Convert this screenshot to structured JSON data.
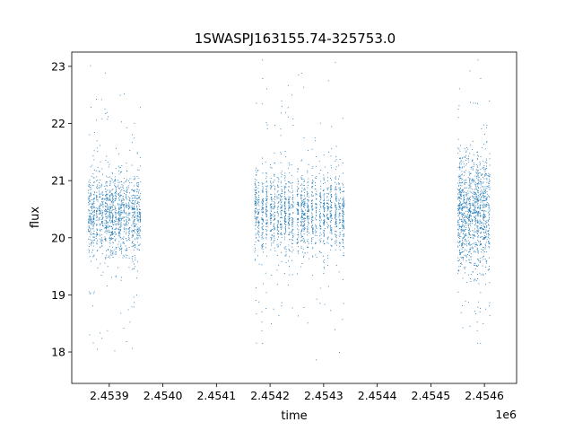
{
  "chart_data": {
    "type": "scatter",
    "title": "1SWASPJ163155.74-325753.0",
    "xlabel": "time",
    "ylabel": "flux",
    "x_offset_text": "1e6",
    "xlim": [
      2.45383,
      2.45466
    ],
    "ylim": [
      17.45,
      23.25
    ],
    "x_ticks": [
      2.4539,
      2.454,
      2.4541,
      2.4542,
      2.4543,
      2.4544,
      2.4545,
      2.4546
    ],
    "x_tick_labels": [
      "2.4539",
      "2.4540",
      "2.4541",
      "2.4542",
      "2.4543",
      "2.4544",
      "2.4545",
      "2.4546"
    ],
    "y_ticks": [
      18,
      19,
      20,
      21,
      22,
      23
    ],
    "y_tick_labels": [
      "18",
      "19",
      "20",
      "21",
      "22",
      "23"
    ],
    "grid": false,
    "series": [
      {
        "color": "#1f77b4",
        "marker_size": "tiny",
        "observing_blocks": [
          {
            "x_start": 2.45386,
            "x_end": 2.45396,
            "center": 20.4,
            "spread": 0.35
          },
          {
            "x_start": 2.45417,
            "x_end": 2.45434,
            "center": 20.45,
            "spread": 0.35
          },
          {
            "x_start": 2.45455,
            "x_end": 2.45461,
            "center": 20.45,
            "spread": 0.5
          }
        ]
      }
    ]
  }
}
